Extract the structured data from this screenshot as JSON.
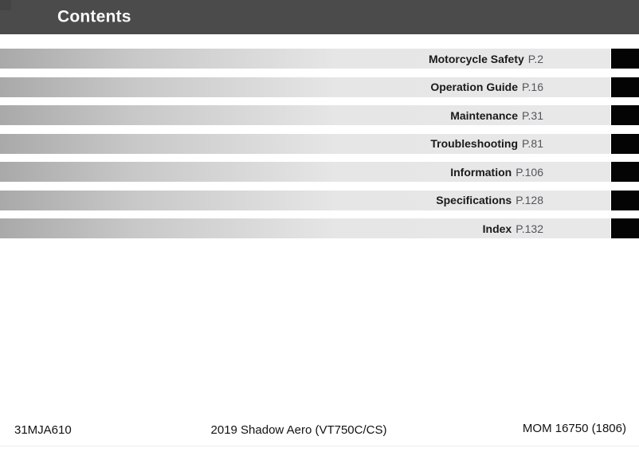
{
  "header": {
    "title": "Contents"
  },
  "toc": {
    "items": [
      {
        "title": "Motorcycle Safety",
        "page": "P.2"
      },
      {
        "title": "Operation Guide",
        "page": "P.16"
      },
      {
        "title": "Maintenance",
        "page": "P.31"
      },
      {
        "title": "Troubleshooting",
        "page": "P.81"
      },
      {
        "title": "Information",
        "page": "P.106"
      },
      {
        "title": "Specifications",
        "page": "P.128"
      },
      {
        "title": "Index",
        "page": "P.132"
      }
    ]
  },
  "footer": {
    "left": "31MJA610",
    "center": "2019 Shadow Aero (VT750C/CS)",
    "right": "MOM 16750 (1806)"
  },
  "colors": {
    "header_bg": "#4b4b4b",
    "bar_gradient_dark": "#a9a9a9",
    "bar_gradient_light": "#e8e8e8",
    "section_tab": "#040404",
    "title_text": "#1a1a1a",
    "page_text": "#54555a"
  }
}
